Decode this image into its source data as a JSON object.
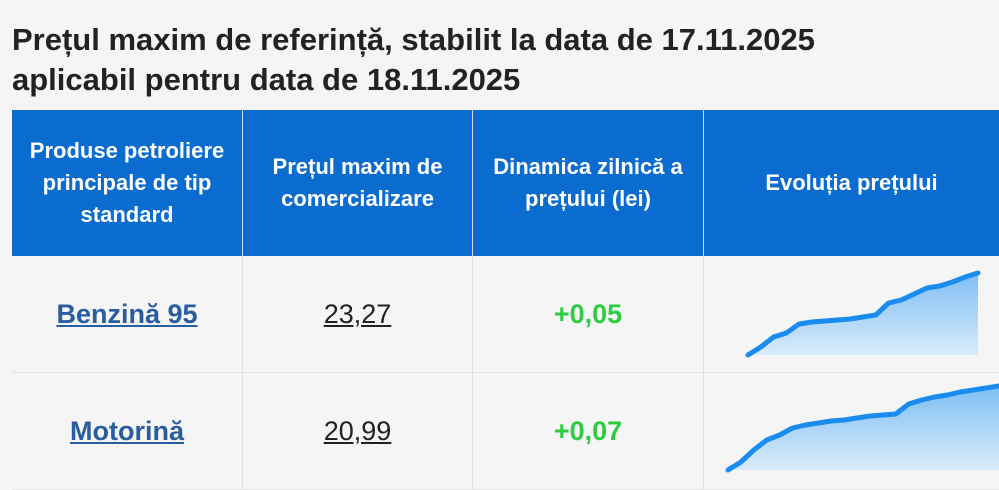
{
  "title": {
    "line1": "Prețul maxim de referință, stabilit la data de 17.11.2025",
    "line2": "aplicabil pentru data de 18.11.2025"
  },
  "table": {
    "headers": [
      "Produse petroliere principale de tip standard",
      "Prețul maxim de comercializare",
      "Dinamica zilnică a prețului (lei)",
      "Evoluția prețului"
    ],
    "rows": [
      {
        "product": "Benzină 95",
        "price": "23,27",
        "change": "+0,05",
        "trend": [
          22.45,
          22.53,
          22.63,
          22.67,
          22.76,
          22.78,
          22.79,
          22.8,
          22.81,
          22.83,
          22.85,
          22.97,
          23.0,
          23.06,
          23.12,
          23.14,
          23.18,
          23.23,
          23.27
        ]
      },
      {
        "product": "Motorină",
        "price": "20,99",
        "change": "+0,07",
        "trend": [
          20.15,
          20.23,
          20.35,
          20.45,
          20.5,
          20.57,
          20.6,
          20.62,
          20.64,
          20.65,
          20.67,
          20.69,
          20.7,
          20.71,
          20.81,
          20.85,
          20.88,
          20.9,
          20.93,
          20.95,
          20.97,
          20.99
        ]
      }
    ]
  }
}
